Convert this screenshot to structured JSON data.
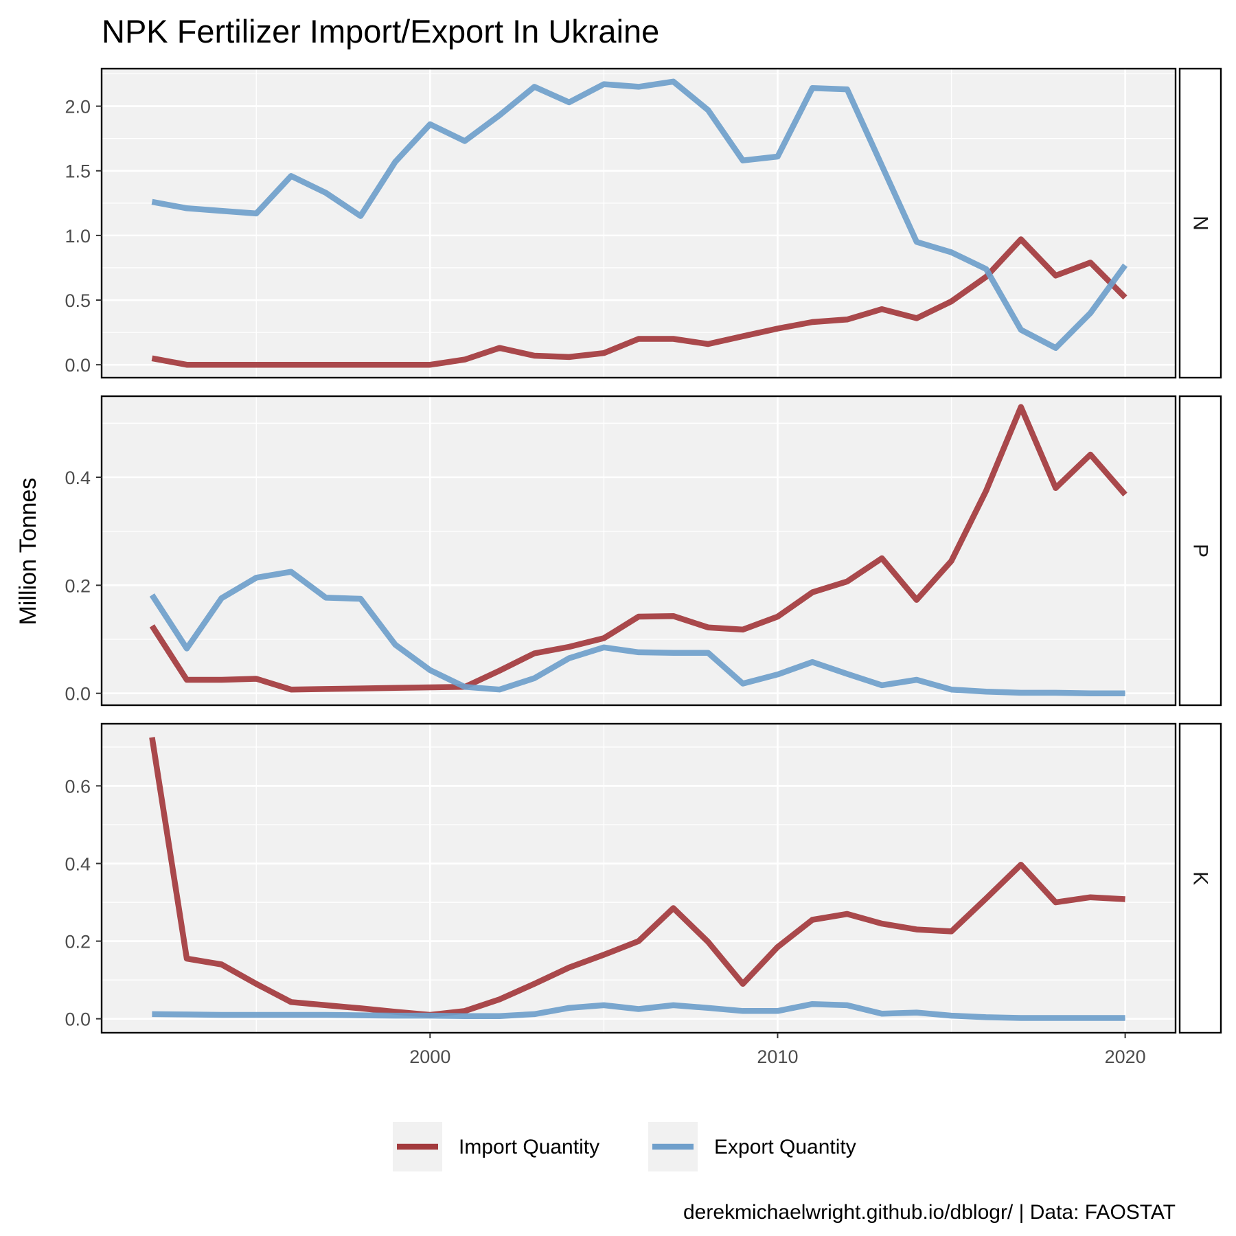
{
  "title": "NPK Fertilizer Import/Export In Ukraine",
  "caption": "derekmichaelwright.github.io/dblogr/ | Data: FAOSTAT",
  "colors": {
    "import": "#a33a3d",
    "export": "#6f9fcb",
    "panel_bg": "#f1f1f1",
    "grid": "#ffffff",
    "border": "#000000"
  },
  "legend": [
    {
      "key": "import",
      "label": "Import Quantity"
    },
    {
      "key": "export",
      "label": "Export Quantity"
    }
  ],
  "chart_data": {
    "type": "line",
    "title": "NPK Fertilizer Import/Export In Ukraine",
    "ylabel": "Million Tonnes",
    "xlabel": "",
    "x": [
      1992,
      1993,
      1994,
      1995,
      1996,
      1997,
      1998,
      1999,
      2000,
      2001,
      2002,
      2003,
      2004,
      2005,
      2006,
      2007,
      2008,
      2009,
      2010,
      2011,
      2012,
      2013,
      2014,
      2015,
      2016,
      2017,
      2018,
      2019,
      2020
    ],
    "xlim": [
      1990.55,
      2021.45
    ],
    "x_ticks": [
      2000,
      2010,
      2020
    ],
    "x_tick_labels": [
      "2000",
      "2010",
      "2020"
    ],
    "grid": true,
    "legend_position": "bottom",
    "facets": [
      {
        "strip": "N",
        "ylim": [
          -0.1,
          2.29
        ],
        "y_ticks": [
          0.0,
          0.5,
          1.0,
          1.5,
          2.0
        ],
        "y_tick_labels": [
          "0.0",
          "0.5",
          "1.0",
          "1.5",
          "2.0"
        ],
        "series": [
          {
            "name": "Import Quantity",
            "key": "import",
            "values": [
              0.05,
              0.0,
              0.0,
              0.0,
              0.0,
              0.0,
              0.0,
              0.0,
              0.0,
              0.04,
              0.13,
              0.07,
              0.06,
              0.09,
              0.2,
              0.2,
              0.16,
              0.22,
              0.28,
              0.33,
              0.35,
              0.43,
              0.36,
              0.49,
              0.68,
              0.97,
              0.69,
              0.79,
              0.52
            ]
          },
          {
            "name": "Export Quantity",
            "key": "export",
            "values": [
              1.26,
              1.21,
              1.19,
              1.17,
              1.46,
              1.33,
              1.15,
              1.57,
              1.86,
              1.73,
              1.93,
              2.15,
              2.03,
              2.17,
              2.15,
              2.19,
              1.97,
              1.58,
              1.61,
              2.14,
              2.13,
              1.54,
              0.95,
              0.87,
              0.74,
              0.27,
              0.13,
              0.4,
              0.77
            ]
          }
        ]
      },
      {
        "strip": "P",
        "ylim": [
          -0.022,
          0.55
        ],
        "y_ticks": [
          0.0,
          0.2,
          0.4
        ],
        "y_tick_labels": [
          "0.0",
          "0.2",
          "0.4"
        ],
        "series": [
          {
            "name": "Import Quantity",
            "key": "import",
            "values": [
              0.125,
              0.025,
              0.025,
              0.027,
              0.007,
              0.008,
              0.009,
              0.01,
              0.011,
              0.012,
              0.042,
              0.074,
              0.086,
              0.102,
              0.142,
              0.143,
              0.122,
              0.118,
              0.142,
              0.187,
              0.207,
              0.25,
              0.173,
              0.245,
              0.375,
              0.53,
              0.38,
              0.442,
              0.368
            ]
          },
          {
            "name": "Export Quantity",
            "key": "export",
            "values": [
              0.182,
              0.083,
              0.176,
              0.214,
              0.225,
              0.177,
              0.175,
              0.09,
              0.043,
              0.012,
              0.007,
              0.028,
              0.065,
              0.085,
              0.076,
              0.075,
              0.075,
              0.018,
              0.035,
              0.058,
              0.036,
              0.015,
              0.025,
              0.007,
              0.003,
              0.001,
              0.001,
              0.0,
              0.0
            ]
          }
        ]
      },
      {
        "strip": "K",
        "ylim": [
          -0.036,
          0.76
        ],
        "y_ticks": [
          0.0,
          0.2,
          0.4,
          0.6
        ],
        "y_tick_labels": [
          "0.0",
          "0.2",
          "0.4",
          "0.6"
        ],
        "series": [
          {
            "name": "Import Quantity",
            "key": "import",
            "values": [
              0.725,
              0.155,
              0.14,
              0.09,
              0.043,
              0.035,
              0.027,
              0.018,
              0.01,
              0.02,
              0.05,
              0.09,
              0.132,
              0.165,
              0.2,
              0.285,
              0.198,
              0.09,
              0.185,
              0.255,
              0.27,
              0.245,
              0.23,
              0.225,
              0.31,
              0.397,
              0.3,
              0.313,
              0.308
            ]
          },
          {
            "name": "Export Quantity",
            "key": "export",
            "values": [
              0.012,
              0.011,
              0.01,
              0.01,
              0.01,
              0.01,
              0.009,
              0.008,
              0.008,
              0.007,
              0.007,
              0.012,
              0.028,
              0.035,
              0.025,
              0.035,
              0.028,
              0.02,
              0.02,
              0.038,
              0.035,
              0.013,
              0.016,
              0.008,
              0.004,
              0.002,
              0.002,
              0.002,
              0.002
            ]
          }
        ]
      }
    ]
  }
}
